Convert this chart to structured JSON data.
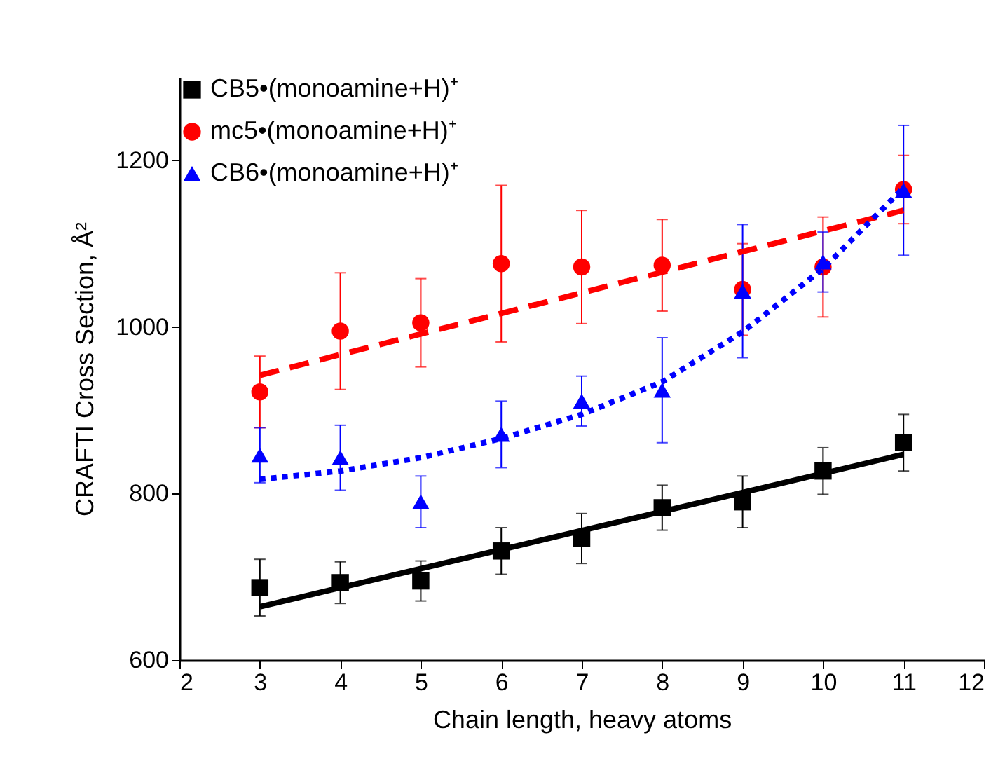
{
  "chart_data": {
    "type": "scatter",
    "xlabel": "Chain length, heavy atoms",
    "ylabel": "CRAFTI Cross Section, Å²",
    "x": [
      3,
      4,
      5,
      6,
      7,
      8,
      9,
      10,
      11
    ],
    "xlim": [
      2,
      12
    ],
    "xticks": [
      2,
      3,
      4,
      5,
      6,
      7,
      8,
      9,
      10,
      11,
      12
    ],
    "ylim": [
      600,
      1300
    ],
    "yticks": [
      600,
      800,
      1000,
      1200
    ],
    "grid": false,
    "legend": "top left",
    "series": [
      {
        "name": "CB5•(monoamine+H)⁺",
        "color": "#000000",
        "marker": "square",
        "values": [
          687,
          693,
          695,
          731,
          746,
          783,
          790,
          827,
          861
        ],
        "errors": [
          34,
          25,
          24,
          28,
          30,
          27,
          31,
          28,
          34
        ]
      },
      {
        "name": "mc5•(monoamine+H)⁺",
        "color": "#ff0000",
        "marker": "circle",
        "values": [
          922,
          995,
          1005,
          1076,
          1072,
          1074,
          1045,
          1072,
          1165
        ],
        "errors": [
          43,
          70,
          53,
          94,
          68,
          55,
          55,
          60,
          41
        ]
      },
      {
        "name": "CB6•(monoamine+H)⁺",
        "color": "#0000ff",
        "marker": "triangle",
        "values": [
          846,
          843,
          790,
          871,
          911,
          924,
          1043,
          1078,
          1164
        ],
        "errors": [
          33,
          39,
          31,
          40,
          30,
          63,
          80,
          36,
          78
        ]
      },
      {
        "type": "line",
        "color": "#000000",
        "line_style": "solid",
        "x": [
          3,
          11
        ],
        "values": [
          664,
          847
        ]
      },
      {
        "type": "line",
        "color": "#ff0000",
        "line_style": "dashed",
        "x": [
          3,
          11
        ],
        "values": [
          942,
          1140
        ]
      },
      {
        "type": "line",
        "color": "#0000ff",
        "line_style": "dotted",
        "x": [
          3,
          4,
          5,
          6,
          7,
          8,
          9,
          10,
          11
        ],
        "values": [
          817,
          827,
          843,
          866,
          895,
          934,
          994,
          1070,
          1167
        ]
      }
    ]
  }
}
